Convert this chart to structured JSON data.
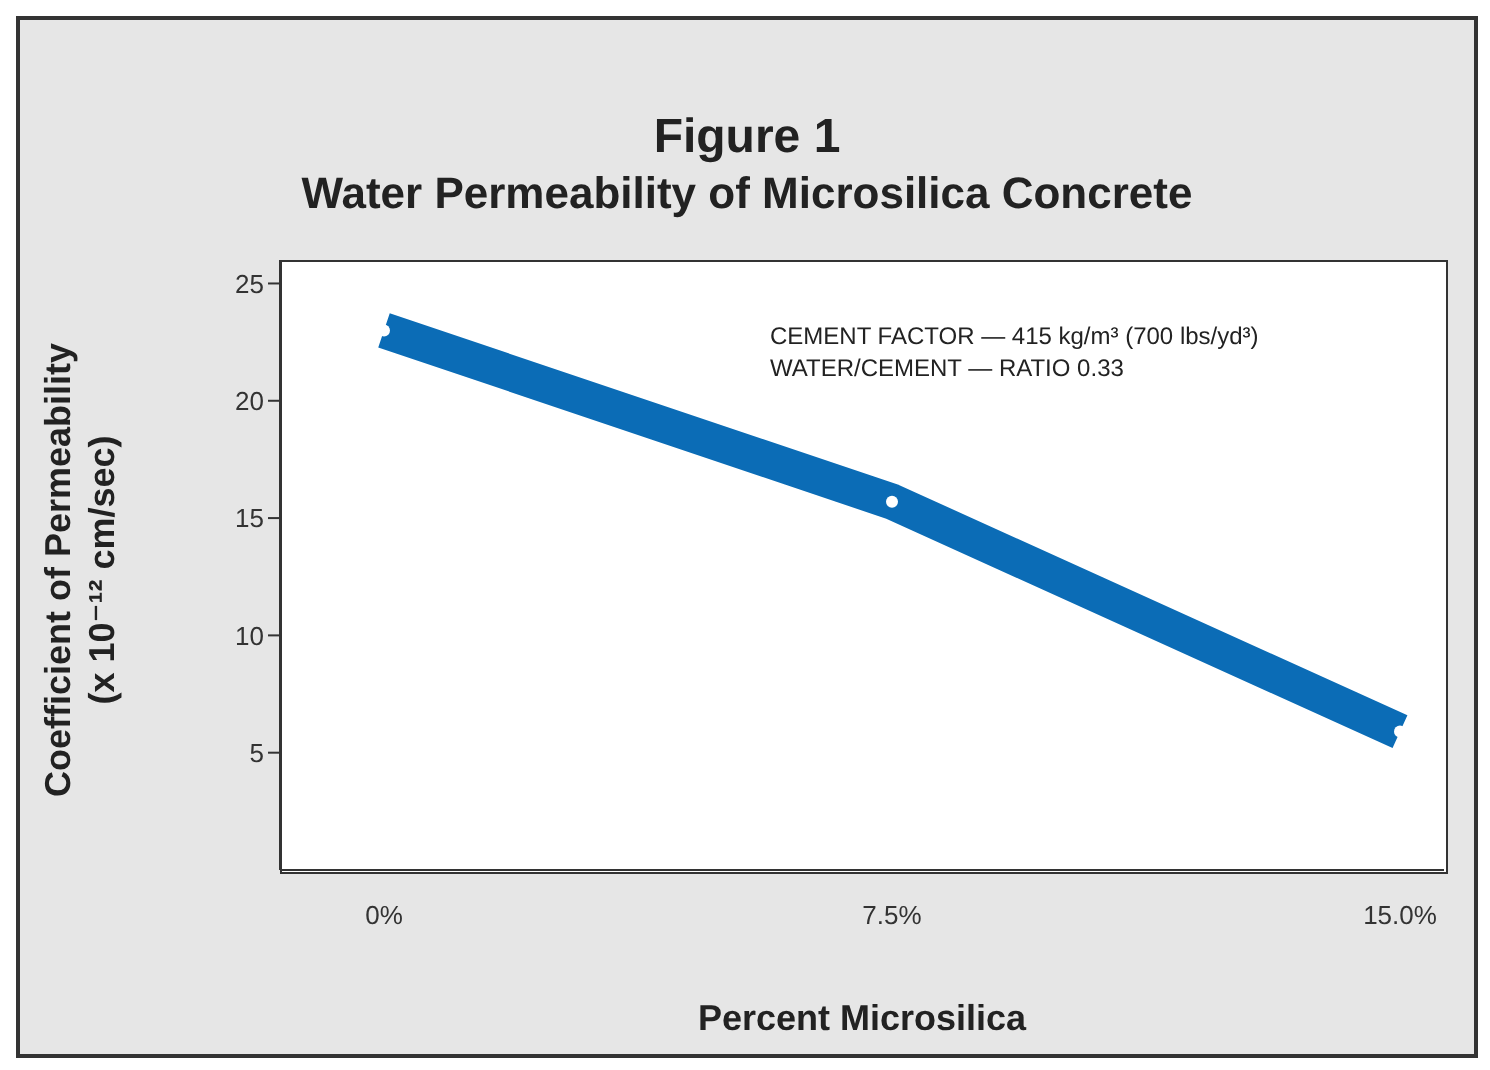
{
  "chart_data": {
    "type": "line",
    "title": "Figure 1",
    "subtitle": "Water Permeability of Microsilica Concrete",
    "xlabel": "Percent Microsilica",
    "ylabel": "Coefficient of Permeability\n(x 10⁻¹² cm/sec)",
    "categories": [
      "0%",
      "7.5%",
      "15.0%"
    ],
    "series": [
      {
        "color": "#0b6cb6",
        "values": [
          23,
          15.7,
          5.9
        ]
      }
    ],
    "ylim": [
      0,
      26
    ],
    "yticks": [
      5,
      10,
      15,
      20,
      25
    ],
    "grid": false,
    "legend": false,
    "marker": "circle",
    "line_style": "solid",
    "annotations": [
      "CEMENT FACTOR — 415 kg/m³ (700 lbs/yd³)",
      "WATER/CEMENT — RATIO 0.33"
    ]
  }
}
